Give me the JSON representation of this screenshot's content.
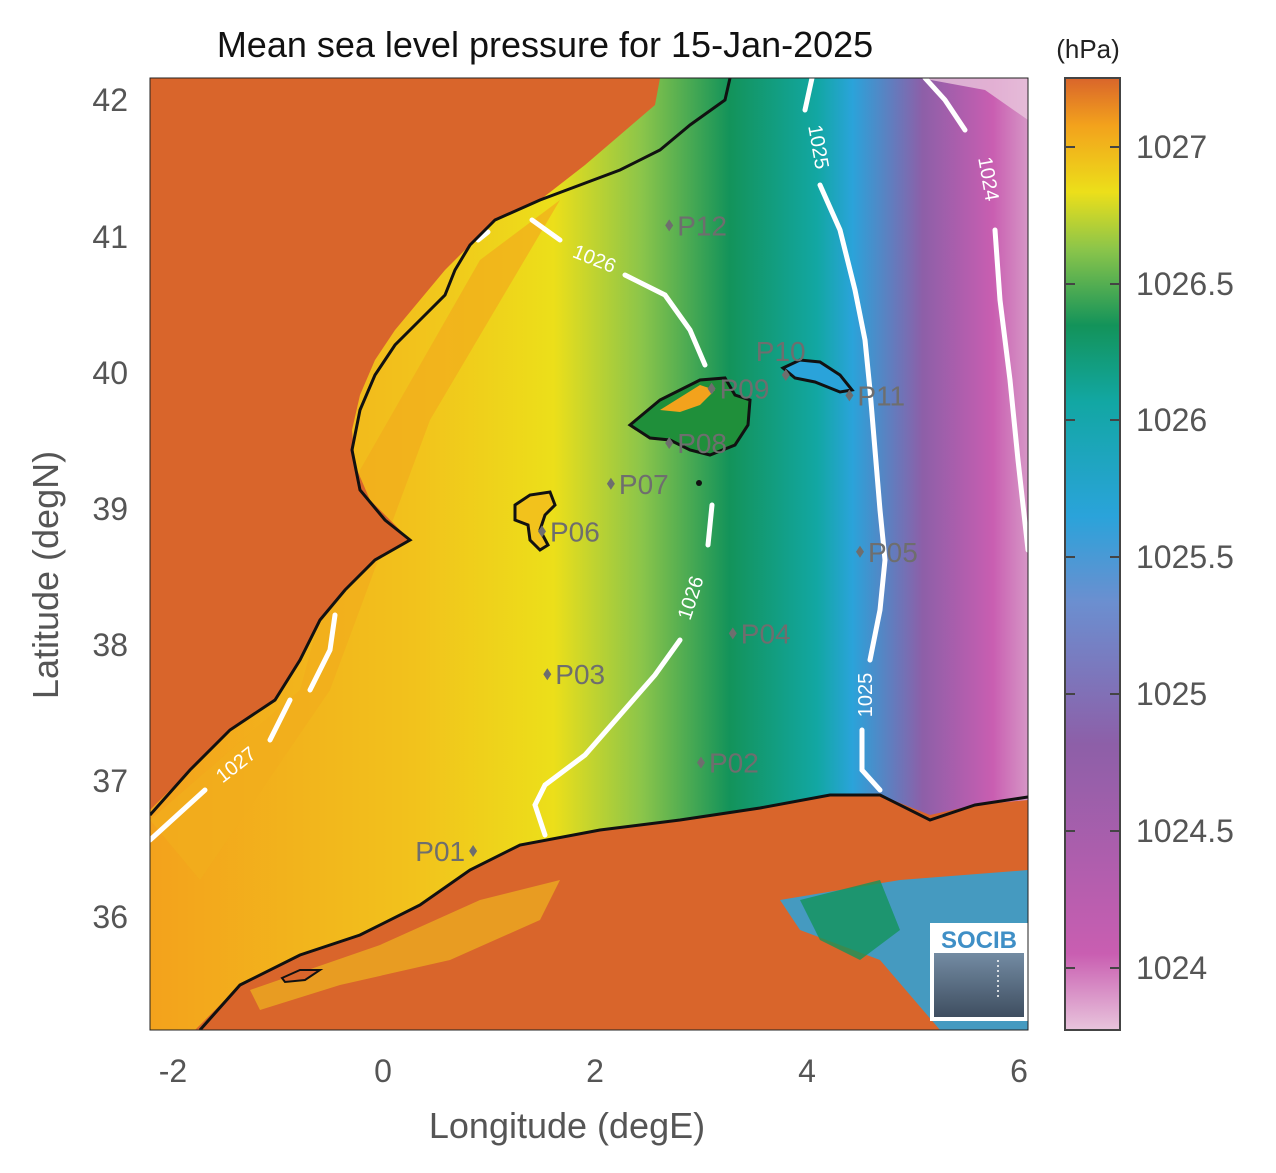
{
  "title": "Mean sea level pressure for 15-Jan-2025",
  "units": "(hPa)",
  "xlabel": "Longitude (degE)",
  "ylabel": "Latitude (degN)",
  "x_ticks": [
    "-2",
    "0",
    "2",
    "4",
    "6"
  ],
  "y_ticks": [
    "42",
    "41",
    "40",
    "39",
    "38",
    "37",
    "36"
  ],
  "colorbar_ticks": [
    "1027",
    "1026.5",
    "1026",
    "1025.5",
    "1025",
    "1024.5",
    "1024"
  ],
  "contour_labels": [
    "1027",
    "1026",
    "1026",
    "1025",
    "1025",
    "1024"
  ],
  "stations": [
    {
      "id": "P01",
      "lon": 0.85,
      "lat": 36.5
    },
    {
      "id": "P02",
      "lon": 3.0,
      "lat": 37.15
    },
    {
      "id": "P03",
      "lon": 1.55,
      "lat": 37.8
    },
    {
      "id": "P04",
      "lon": 3.3,
      "lat": 38.1
    },
    {
      "id": "P05",
      "lon": 4.5,
      "lat": 38.7
    },
    {
      "id": "P06",
      "lon": 1.5,
      "lat": 38.85
    },
    {
      "id": "P07",
      "lon": 2.15,
      "lat": 39.2
    },
    {
      "id": "P08",
      "lon": 2.7,
      "lat": 39.5
    },
    {
      "id": "P09",
      "lon": 3.1,
      "lat": 39.9
    },
    {
      "id": "P10",
      "lon": 3.8,
      "lat": 40.0
    },
    {
      "id": "P11",
      "lon": 4.4,
      "lat": 39.85
    },
    {
      "id": "P12",
      "lon": 2.7,
      "lat": 41.1
    }
  ],
  "logo_text": "SOCIB",
  "colors": {
    "land": "#d9652b",
    "contour": "#ffffff",
    "coast": "#111111",
    "station": "#6e6e6e",
    "scale": [
      "#e8c4dc",
      "#c95eb1",
      "#8d5fa8",
      "#2aa3da",
      "#12a7a3",
      "#13935a",
      "#8bc54a",
      "#ecdf1a",
      "#f3a21c",
      "#d9652b"
    ]
  }
}
